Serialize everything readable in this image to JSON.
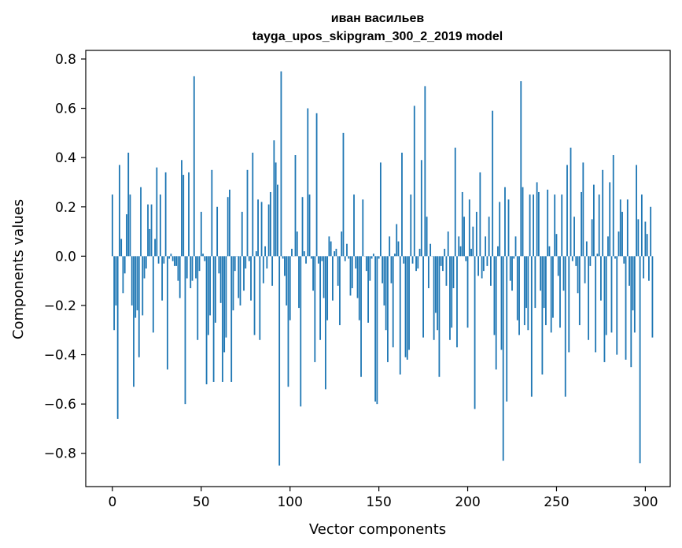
{
  "chart_data": {
    "type": "bar",
    "title": [
      "иван васильев",
      "tayga_upos_skipgram_300_2_2019 model"
    ],
    "xlabel": "Vector components",
    "ylabel": "Components values",
    "xlim": [
      -15,
      314
    ],
    "ylim": [
      -0.935,
      0.835
    ],
    "xticks": [
      0,
      50,
      100,
      150,
      200,
      250,
      300
    ],
    "xtick_labels": [
      "0",
      "50",
      "100",
      "150",
      "200",
      "250",
      "300"
    ],
    "yticks": [
      -0.8,
      -0.6,
      -0.4,
      -0.2,
      0.0,
      0.2,
      0.4,
      0.6,
      0.8
    ],
    "ytick_labels": [
      "−0.8",
      "−0.6",
      "−0.4",
      "−0.2",
      "0.0",
      "0.2",
      "0.4",
      "0.6",
      "0.8"
    ],
    "bar_color": "#1f77b4",
    "grid": false,
    "values": [
      0.25,
      -0.3,
      -0.2,
      -0.66,
      0.37,
      0.07,
      -0.15,
      -0.07,
      0.17,
      0.42,
      0.25,
      -0.2,
      -0.53,
      -0.25,
      -0.22,
      -0.41,
      0.28,
      -0.24,
      -0.09,
      -0.05,
      0.21,
      0.11,
      0.21,
      -0.31,
      0.07,
      0.36,
      -0.03,
      0.25,
      -0.18,
      -0.03,
      0.34,
      -0.46,
      -0.01,
      0.01,
      -0.02,
      -0.04,
      -0.04,
      -0.1,
      -0.17,
      0.39,
      0.33,
      -0.6,
      -0.09,
      0.34,
      -0.13,
      -0.1,
      0.73,
      -0.09,
      -0.34,
      -0.06,
      0.18,
      0.01,
      -0.02,
      -0.52,
      -0.32,
      -0.24,
      0.35,
      -0.51,
      -0.27,
      0.2,
      -0.07,
      -0.19,
      -0.51,
      -0.39,
      -0.33,
      0.24,
      0.27,
      -0.51,
      -0.22,
      -0.06,
      0.0,
      -0.17,
      -0.2,
      0.18,
      -0.14,
      -0.05,
      0.35,
      -0.02,
      -0.18,
      0.42,
      -0.32,
      0.02,
      0.23,
      -0.34,
      0.22,
      -0.11,
      0.04,
      -0.05,
      0.21,
      0.26,
      -0.12,
      0.47,
      0.38,
      0.29,
      -0.85,
      0.75,
      -0.01,
      -0.08,
      -0.2,
      -0.53,
      -0.26,
      0.03,
      0.0,
      0.41,
      0.1,
      -0.21,
      -0.61,
      0.24,
      0.02,
      -0.03,
      0.6,
      0.25,
      -0.01,
      -0.14,
      -0.43,
      0.58,
      -0.03,
      -0.34,
      -0.02,
      -0.17,
      -0.54,
      -0.26,
      0.08,
      0.06,
      -0.18,
      0.02,
      0.03,
      -0.12,
      -0.28,
      0.1,
      0.5,
      -0.02,
      0.05,
      -0.01,
      -0.16,
      -0.13,
      0.25,
      -0.05,
      -0.17,
      -0.26,
      -0.49,
      0.23,
      0.0,
      -0.06,
      -0.27,
      -0.1,
      -0.01,
      0.01,
      -0.59,
      -0.6,
      -0.01,
      0.38,
      -0.11,
      -0.2,
      -0.3,
      -0.43,
      0.08,
      -0.11,
      -0.37,
      0.01,
      0.13,
      0.06,
      -0.48,
      0.42,
      -0.03,
      -0.41,
      -0.42,
      -0.38,
      0.25,
      -0.03,
      0.61,
      -0.06,
      -0.05,
      0.03,
      0.39,
      -0.33,
      0.69,
      0.16,
      -0.13,
      0.05,
      0.0,
      -0.34,
      -0.23,
      -0.3,
      -0.49,
      -0.04,
      -0.06,
      0.03,
      -0.12,
      0.1,
      -0.34,
      -0.29,
      -0.13,
      0.44,
      -0.37,
      0.08,
      0.04,
      0.26,
      0.16,
      -0.02,
      -0.29,
      0.23,
      0.03,
      0.12,
      -0.62,
      0.18,
      -0.08,
      0.34,
      -0.09,
      -0.06,
      0.08,
      -0.04,
      0.16,
      -0.12,
      0.59,
      -0.32,
      -0.46,
      0.04,
      0.22,
      -0.38,
      -0.83,
      0.28,
      -0.59,
      0.23,
      -0.1,
      -0.14,
      -0.01,
      0.08,
      -0.26,
      -0.32,
      0.71,
      0.28,
      -0.28,
      -0.21,
      -0.3,
      0.25,
      -0.57,
      0.25,
      -0.21,
      0.3,
      0.26,
      -0.14,
      -0.48,
      -0.21,
      -0.28,
      0.27,
      0.04,
      -0.31,
      -0.25,
      0.25,
      0.09,
      -0.08,
      -0.29,
      0.25,
      -0.14,
      -0.57,
      0.37,
      -0.39,
      0.44,
      -0.02,
      0.16,
      -0.04,
      -0.15,
      -0.28,
      0.26,
      0.38,
      -0.11,
      0.06,
      -0.34,
      -0.04,
      0.15,
      0.29,
      -0.39,
      0.01,
      0.25,
      -0.18,
      0.35,
      -0.43,
      -0.32,
      0.08,
      0.3,
      -0.31,
      0.41,
      -0.01,
      -0.4,
      0.1,
      0.23,
      0.18,
      -0.03,
      -0.42,
      0.23,
      -0.12,
      -0.45,
      -0.22,
      -0.31,
      0.37,
      0.15,
      -0.84,
      0.25,
      -0.09,
      0.14,
      0.09,
      -0.1,
      0.2,
      -0.33
    ]
  }
}
